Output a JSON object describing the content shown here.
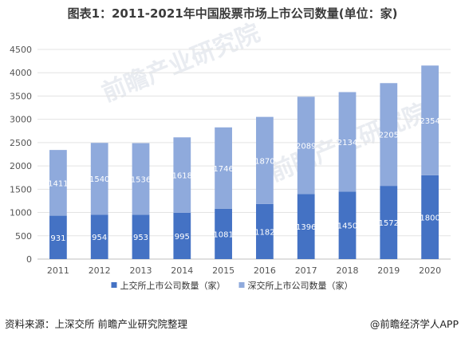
{
  "title": "图表1：2011-2021年中国股票市场上市公司数量(单位：家)",
  "footer": {
    "source": "资料来源：上深交所 前瞻产业研究院整理",
    "credit": "@前瞻经济学人APP"
  },
  "watermarks": [
    "前瞻产业研究院",
    "前瞻产业研究院"
  ],
  "colors": {
    "sh": "#4472c4",
    "sz": "#8faadc",
    "grid": "#e3e3e3",
    "axis": "#bfbfbf"
  },
  "chart_data": {
    "type": "bar",
    "stacked": true,
    "categories": [
      "2011",
      "2012",
      "2013",
      "2014",
      "2015",
      "2016",
      "2017",
      "2018",
      "2019",
      "2020"
    ],
    "series": [
      {
        "name": "上交所上市公司数量（家）",
        "values": [
          931,
          954,
          953,
          995,
          1081,
          1182,
          1396,
          1450,
          1572,
          1800
        ]
      },
      {
        "name": "深交所上市公司数量（家）",
        "values": [
          1411,
          1540,
          1536,
          1618,
          1746,
          1870,
          2089,
          2134,
          2205,
          2354
        ]
      }
    ],
    "ylim": [
      0,
      4500
    ],
    "yticks": [
      0,
      500,
      1000,
      1500,
      2000,
      2500,
      3000,
      3500,
      4000,
      4500
    ],
    "grid": true,
    "legend_position": "bottom"
  }
}
